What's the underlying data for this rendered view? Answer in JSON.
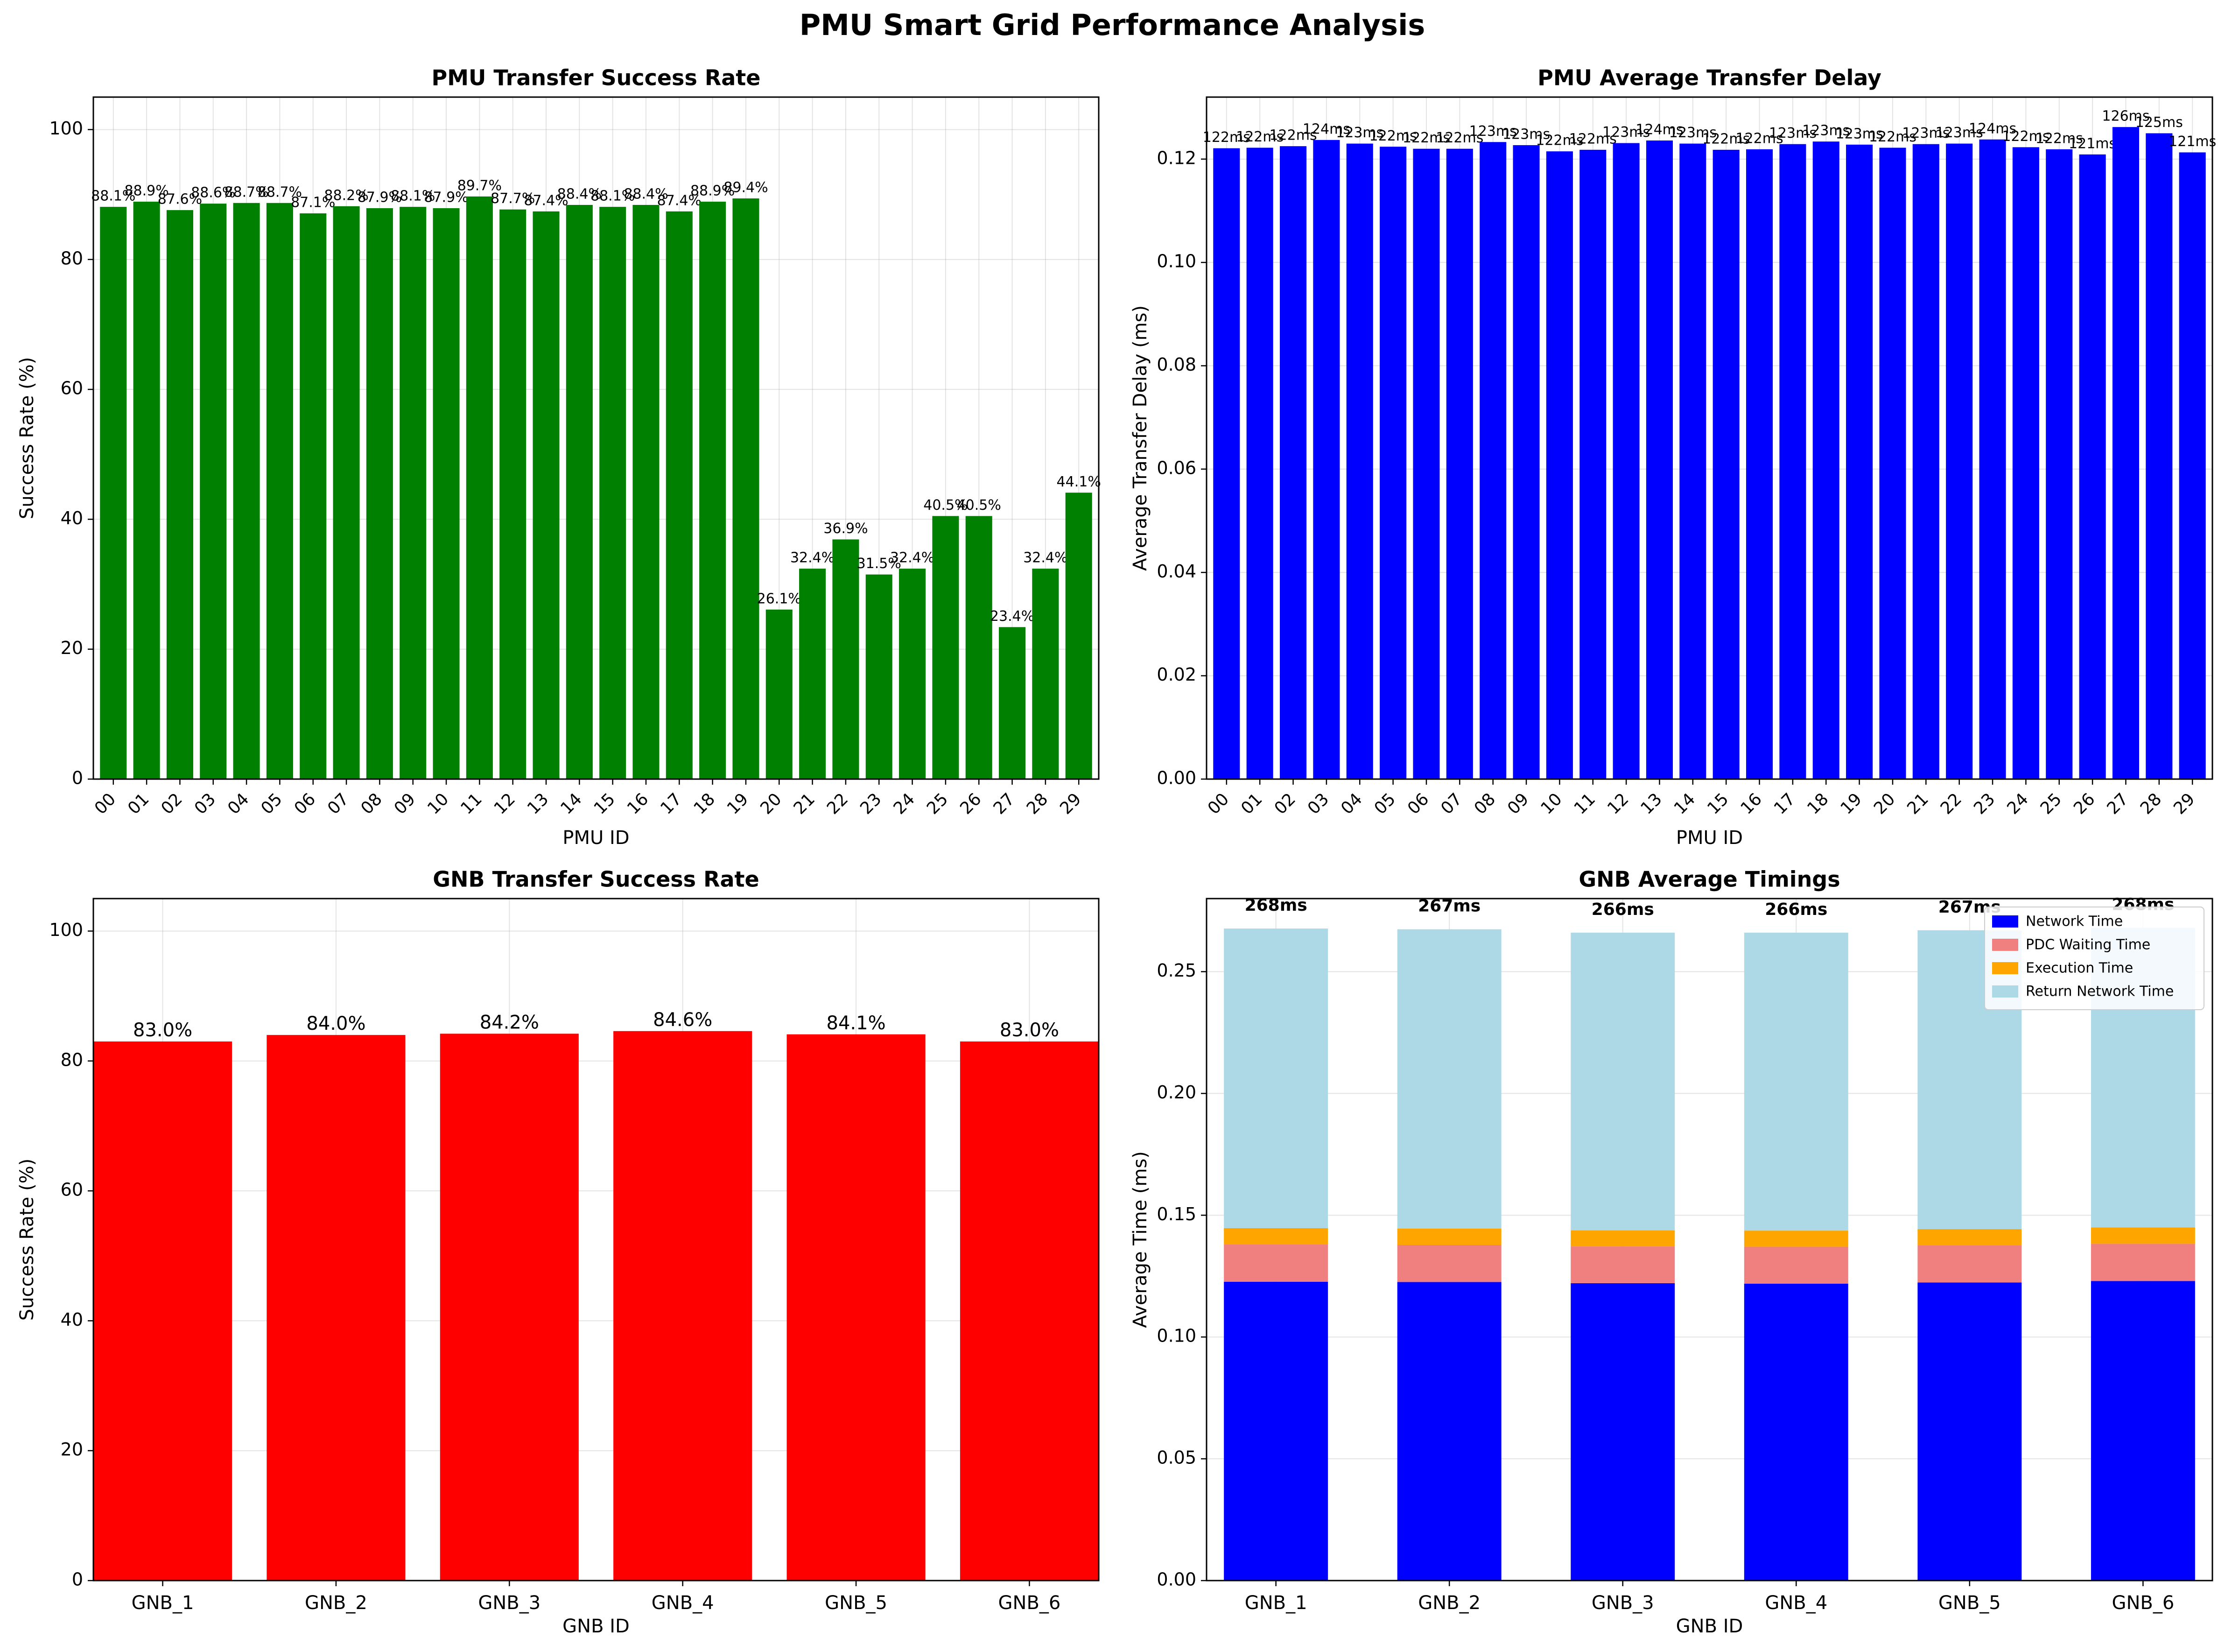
{
  "figure": {
    "suptitle": "PMU Smart Grid Performance Analysis"
  },
  "chart_data": [
    {
      "type": "bar",
      "title": "PMU Transfer Success Rate",
      "xlabel": "PMU ID",
      "ylabel": "Success Rate (%)",
      "ylim": [
        0,
        105
      ],
      "yticks": [
        "0",
        "20",
        "40",
        "60",
        "80",
        "100"
      ],
      "ytick_values": [
        0,
        20,
        40,
        60,
        80,
        100
      ],
      "grid": true,
      "color": "#008000",
      "categories": [
        "00",
        "01",
        "02",
        "03",
        "04",
        "05",
        "06",
        "07",
        "08",
        "09",
        "10",
        "11",
        "12",
        "13",
        "14",
        "15",
        "16",
        "17",
        "18",
        "19",
        "20",
        "21",
        "22",
        "23",
        "24",
        "25",
        "26",
        "27",
        "28",
        "29"
      ],
      "values": [
        88.1,
        88.9,
        87.6,
        88.6,
        88.7,
        88.7,
        87.1,
        88.2,
        87.9,
        88.1,
        87.9,
        89.7,
        87.7,
        87.4,
        88.4,
        88.1,
        88.4,
        87.4,
        88.9,
        89.4,
        26.1,
        32.4,
        36.9,
        31.5,
        32.4,
        40.5,
        40.5,
        23.4,
        32.4,
        44.1
      ],
      "labels": [
        "88.1%",
        "88.9%",
        "87.6%",
        "88.6%",
        "88.7%",
        "88.7%",
        "87.1%",
        "88.2%",
        "87.9%",
        "88.1%",
        "87.9%",
        "89.7%",
        "87.7%",
        "87.4%",
        "88.4%",
        "88.1%",
        "88.4%",
        "87.4%",
        "88.9%",
        "89.4%",
        "26.1%",
        "32.4%",
        "36.9%",
        "31.5%",
        "32.4%",
        "40.5%",
        "40.5%",
        "23.4%",
        "32.4%",
        "44.1%"
      ]
    },
    {
      "type": "bar",
      "title": "PMU Average Transfer Delay",
      "xlabel": "PMU ID",
      "ylabel": "Average Transfer Delay (ms)",
      "ylim": [
        0,
        0.132
      ],
      "yticks": [
        "0.00",
        "0.02",
        "0.04",
        "0.06",
        "0.08",
        "0.10",
        "0.12"
      ],
      "ytick_values": [
        0,
        0.02,
        0.04,
        0.06,
        0.08,
        0.1,
        0.12
      ],
      "grid": true,
      "color": "#0000ff",
      "categories": [
        "00",
        "01",
        "02",
        "03",
        "04",
        "05",
        "06",
        "07",
        "08",
        "09",
        "10",
        "11",
        "12",
        "13",
        "14",
        "15",
        "16",
        "17",
        "18",
        "19",
        "20",
        "21",
        "22",
        "23",
        "24",
        "25",
        "26",
        "27",
        "28",
        "29"
      ],
      "values": [
        0.1221,
        0.1222,
        0.1225,
        0.1237,
        0.123,
        0.1224,
        0.122,
        0.122,
        0.1233,
        0.1227,
        0.1215,
        0.1218,
        0.1231,
        0.1236,
        0.123,
        0.1218,
        0.1219,
        0.1229,
        0.1234,
        0.1228,
        0.1222,
        0.1229,
        0.123,
        0.1238,
        0.1223,
        0.1219,
        0.1209,
        0.1262,
        0.125,
        0.1213
      ],
      "labels": [
        "122ms",
        "122ms",
        "122ms",
        "124ms",
        "123ms",
        "122ms",
        "122ms",
        "122ms",
        "123ms",
        "123ms",
        "122ms",
        "122ms",
        "123ms",
        "124ms",
        "123ms",
        "122ms",
        "122ms",
        "123ms",
        "123ms",
        "123ms",
        "122ms",
        "123ms",
        "123ms",
        "124ms",
        "122ms",
        "122ms",
        "121ms",
        "126ms",
        "125ms",
        "121ms"
      ]
    },
    {
      "type": "bar",
      "title": "GNB Transfer Success Rate",
      "xlabel": "GNB ID",
      "ylabel": "Success Rate (%)",
      "ylim": [
        0,
        105
      ],
      "yticks": [
        "0",
        "20",
        "40",
        "60",
        "80",
        "100"
      ],
      "ytick_values": [
        0,
        20,
        40,
        60,
        80,
        100
      ],
      "grid": true,
      "color": "#ff0000",
      "categories": [
        "GNB_1",
        "GNB_2",
        "GNB_3",
        "GNB_4",
        "GNB_5",
        "GNB_6"
      ],
      "values": [
        83.0,
        84.0,
        84.2,
        84.6,
        84.1,
        83.0
      ],
      "labels": [
        "83.0%",
        "84.0%",
        "84.2%",
        "84.6%",
        "84.1%",
        "83.0%"
      ]
    },
    {
      "type": "bar",
      "stacked": true,
      "title": "GNB Average Timings",
      "xlabel": "GNB ID",
      "ylabel": "Average Time (ms)",
      "ylim": [
        0,
        0.28
      ],
      "yticks": [
        "0.00",
        "0.05",
        "0.10",
        "0.15",
        "0.20",
        "0.25"
      ],
      "ytick_values": [
        0,
        0.05,
        0.1,
        0.15,
        0.2,
        0.25
      ],
      "grid": true,
      "legend": "top-right",
      "categories": [
        "GNB_1",
        "GNB_2",
        "GNB_3",
        "GNB_4",
        "GNB_5",
        "GNB_6"
      ],
      "series": [
        {
          "name": "Network Time",
          "color": "#0000ff",
          "values": [
            0.1227,
            0.1226,
            0.1221,
            0.1219,
            0.1224,
            0.123
          ]
        },
        {
          "name": "PDC Waiting Time",
          "color": "#f08080",
          "values": [
            0.0153,
            0.0152,
            0.0151,
            0.0152,
            0.0152,
            0.0153
          ]
        },
        {
          "name": "Execution Time",
          "color": "#ffa500",
          "values": [
            0.0067,
            0.0067,
            0.0066,
            0.0066,
            0.0067,
            0.0067
          ]
        },
        {
          "name": "Return Network Time",
          "color": "#add8e6",
          "values": [
            0.123,
            0.1229,
            0.1222,
            0.1223,
            0.1227,
            0.123
          ]
        }
      ],
      "totals": [
        0.2677,
        0.2674,
        0.266,
        0.266,
        0.267,
        0.268
      ],
      "labels": [
        "268ms",
        "267ms",
        "266ms",
        "266ms",
        "267ms",
        "268ms"
      ]
    }
  ]
}
